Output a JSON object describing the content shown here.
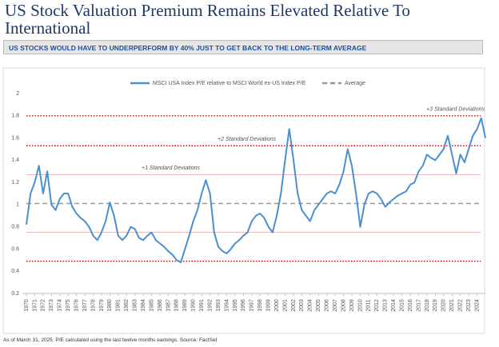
{
  "header": {
    "title": "US Stock Valuation Premium Remains Elevated Relative To International",
    "banner": "US STOCKS WOULD HAVE TO UNDERPERFORM BY 40% JUST TO GET BACK TO THE LONG-TERM AVERAGE"
  },
  "footnote": "As of March 31, 2025.  P/E calculated using the last twelve months earnings.  Source: FactSet",
  "chart_data": {
    "type": "line",
    "x": [
      1970,
      1970.5,
      1971,
      1971.5,
      1972,
      1972.5,
      1973,
      1973.5,
      1974,
      1974.5,
      1975,
      1975.5,
      1976,
      1976.5,
      1977,
      1977.5,
      1978,
      1978.5,
      1979,
      1979.5,
      1980,
      1980.5,
      1981,
      1981.5,
      1982,
      1982.5,
      1983,
      1983.5,
      1984,
      1984.5,
      1985,
      1985.5,
      1986,
      1986.5,
      1987,
      1987.5,
      1988,
      1988.5,
      1989,
      1989.5,
      1990,
      1990.5,
      1991,
      1991.5,
      1992,
      1992.5,
      1993,
      1993.5,
      1994,
      1994.5,
      1995,
      1995.5,
      1996,
      1996.5,
      1997,
      1997.5,
      1998,
      1998.5,
      1999,
      1999.5,
      2000,
      2000.5,
      2001,
      2001.5,
      2002,
      2002.5,
      2003,
      2003.5,
      2004,
      2004.5,
      2005,
      2005.5,
      2006,
      2006.5,
      2007,
      2007.5,
      2008,
      2008.5,
      2009,
      2009.5,
      2010,
      2010.5,
      2011,
      2011.5,
      2012,
      2012.5,
      2013,
      2013.5,
      2014,
      2014.5,
      2015,
      2015.5,
      2016,
      2016.5,
      2017,
      2017.5,
      2018,
      2018.5,
      2019,
      2019.5,
      2020,
      2020.5,
      2021,
      2021.5,
      2022,
      2022.5,
      2023,
      2023.5,
      2024,
      2024.5,
      2025
    ],
    "series": [
      {
        "name": "MSCI USA Index P/E relative to MSCI World ex-US Index P/E",
        "color": "#4a90d0",
        "values": [
          0.82,
          1.1,
          1.2,
          1.35,
          1.1,
          1.3,
          1.0,
          0.95,
          1.05,
          1.1,
          1.1,
          0.98,
          0.92,
          0.88,
          0.85,
          0.8,
          0.72,
          0.68,
          0.75,
          0.85,
          1.02,
          0.9,
          0.72,
          0.68,
          0.72,
          0.8,
          0.78,
          0.7,
          0.68,
          0.72,
          0.75,
          0.68,
          0.65,
          0.62,
          0.58,
          0.55,
          0.5,
          0.48,
          0.6,
          0.72,
          0.85,
          0.95,
          1.1,
          1.22,
          1.1,
          0.75,
          0.62,
          0.58,
          0.56,
          0.6,
          0.65,
          0.68,
          0.72,
          0.75,
          0.85,
          0.9,
          0.92,
          0.88,
          0.8,
          0.75,
          0.9,
          1.1,
          1.4,
          1.68,
          1.4,
          1.1,
          0.95,
          0.9,
          0.85,
          0.95,
          1.0,
          1.05,
          1.1,
          1.12,
          1.1,
          1.18,
          1.3,
          1.5,
          1.35,
          1.1,
          0.8,
          1.0,
          1.1,
          1.12,
          1.1,
          1.05,
          0.98,
          1.02,
          1.05,
          1.08,
          1.1,
          1.12,
          1.18,
          1.2,
          1.3,
          1.35,
          1.45,
          1.42,
          1.4,
          1.45,
          1.5,
          1.62,
          1.45,
          1.28,
          1.45,
          1.38,
          1.5,
          1.62,
          1.68,
          1.78,
          1.6
        ]
      },
      {
        "name": "Average",
        "color": "#999999",
        "style": "dashed"
      }
    ],
    "reference_lines": [
      {
        "value": 1.01,
        "color": "#999999",
        "style": "dashed"
      },
      {
        "value": 1.27,
        "color": "#e8a0a0",
        "style": "solid",
        "label": "+1 Standard Deviations"
      },
      {
        "value": 1.53,
        "color": "#cc0000",
        "style": "dotted",
        "label": "+2 Standard Deviations"
      },
      {
        "value": 1.8,
        "color": "#cc0000",
        "style": "dotted",
        "label": "+3 Standard Deviations"
      },
      {
        "value": 0.75,
        "color": "#e8a0a0",
        "style": "solid"
      },
      {
        "value": 0.49,
        "color": "#cc0000",
        "style": "dotted"
      }
    ],
    "xlim": [
      1970,
      2025
    ],
    "xticks": [
      1970,
      1971,
      1972,
      1973,
      1974,
      1975,
      1976,
      1977,
      1978,
      1979,
      1980,
      1981,
      1982,
      1983,
      1984,
      1985,
      1986,
      1987,
      1988,
      1989,
      1990,
      1991,
      1992,
      1993,
      1994,
      1995,
      1996,
      1997,
      1998,
      1999,
      2000,
      2001,
      2002,
      2003,
      2004,
      2005,
      2006,
      2007,
      2008,
      2009,
      2010,
      2011,
      2012,
      2013,
      2014,
      2015,
      2016,
      2017,
      2018,
      2019,
      2020,
      2021,
      2022,
      2023,
      2024
    ],
    "ylim": [
      0.2,
      2
    ],
    "yticks": [
      0.2,
      0.4,
      0.6,
      0.8,
      1,
      1.2,
      1.4,
      1.6,
      1.8,
      2
    ],
    "grid": false
  }
}
